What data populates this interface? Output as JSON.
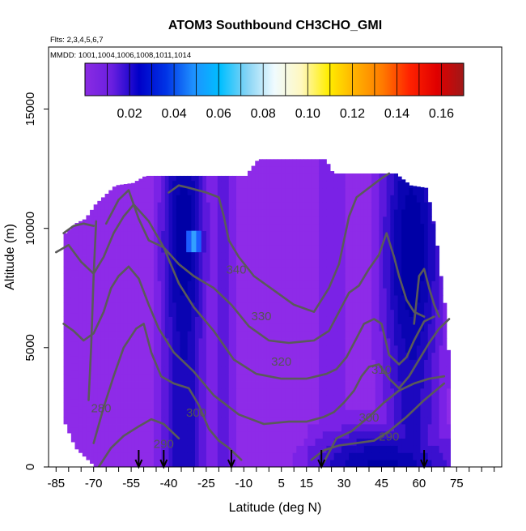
{
  "chart_data": {
    "type": "heatmap",
    "title": "ATOM3 Southbound CH3CHO_GMI",
    "subtitle_flights": "Flts: 2,3,4,5,6,7",
    "subtitle_dates": "MMDD: 1001,1004,1006,1008,1011,1014",
    "xlabel": "Latitude (deg N)",
    "ylabel": "Altitude (m)",
    "xlim": [
      -88,
      93
    ],
    "ylim": [
      0,
      17600
    ],
    "x_ticks": [
      -85,
      -70,
      -55,
      -40,
      -25,
      -10,
      5,
      15,
      30,
      45,
      60,
      75
    ],
    "x_tick_labels": [
      "-85",
      "-70",
      "-55",
      "-40",
      "-25",
      "-10",
      "5",
      "15",
      "30",
      "45",
      "60",
      "75"
    ],
    "y_ticks": [
      0,
      5000,
      10000,
      15000
    ],
    "y_tick_labels": [
      "0",
      "5000",
      "10000",
      "15000"
    ],
    "colorbar": {
      "ticks": [
        0.02,
        0.04,
        0.06,
        0.08,
        0.1,
        0.12,
        0.14,
        0.16
      ],
      "tick_labels": [
        "0.02",
        "0.04",
        "0.06",
        "0.08",
        "0.10",
        "0.12",
        "0.14",
        "0.16"
      ],
      "range": [
        0.0,
        0.17
      ],
      "colors": [
        "#8a2be2",
        "#6a1fe0",
        "#0000c8",
        "#0033e6",
        "#1e90ff",
        "#00bfff",
        "#87d4f5",
        "#f0fbff",
        "#fff8c0",
        "#ffee00",
        "#ffb000",
        "#ff7a00",
        "#ff2200",
        "#e00000",
        "#a01818"
      ]
    },
    "contours": [
      {
        "label": "290",
        "points": [
          [
            -68,
            0
          ],
          [
            -63,
            800
          ],
          [
            -58,
            1300
          ],
          [
            -52,
            1700
          ],
          [
            -47,
            2000
          ],
          [
            -42,
            1800
          ],
          [
            -36,
            1200
          ]
        ]
      },
      {
        "label": "290",
        "points": [
          [
            17,
            300
          ],
          [
            22,
            700
          ],
          [
            28,
            900
          ],
          [
            35,
            1000
          ],
          [
            42,
            1100
          ],
          [
            48,
            1500
          ],
          [
            55,
            2100
          ],
          [
            62,
            2800
          ],
          [
            70,
            3500
          ]
        ]
      },
      {
        "label": "300",
        "points": [
          [
            -70,
            1000
          ],
          [
            -66,
            2500
          ],
          [
            -62,
            3800
          ],
          [
            -58,
            5000
          ],
          [
            -53,
            5800
          ],
          [
            -50,
            6000
          ],
          [
            -47,
            4800
          ],
          [
            -43,
            3800
          ],
          [
            -38,
            3500
          ],
          [
            -32,
            3300
          ],
          [
            -28,
            2600
          ],
          [
            -24,
            1600
          ],
          [
            -20,
            1100
          ],
          [
            -16,
            800
          ],
          [
            -11,
            300
          ]
        ]
      },
      {
        "label": "300",
        "points": [
          [
            22,
            200
          ],
          [
            27,
            1200
          ],
          [
            33,
            1500
          ],
          [
            40,
            2100
          ],
          [
            46,
            2700
          ],
          [
            52,
            3200
          ],
          [
            58,
            3500
          ],
          [
            64,
            3700
          ],
          [
            70,
            3800
          ]
        ]
      },
      {
        "label": "310",
        "points": [
          [
            -82,
            6000
          ],
          [
            -78,
            5700
          ],
          [
            -74,
            5300
          ],
          [
            -70,
            5600
          ],
          [
            -66,
            6500
          ],
          [
            -63,
            7500
          ],
          [
            -60,
            8000
          ],
          [
            -56,
            8400
          ],
          [
            -52,
            7900
          ],
          [
            -48,
            6800
          ],
          [
            -44,
            5800
          ],
          [
            -38,
            4800
          ],
          [
            -30,
            4000
          ],
          [
            -22,
            3000
          ],
          [
            -12,
            2200
          ],
          [
            -2,
            1800
          ],
          [
            8,
            1900
          ],
          [
            15,
            1900
          ],
          [
            22,
            2100
          ],
          [
            26,
            2300
          ],
          [
            30,
            2700
          ],
          [
            34,
            3200
          ],
          [
            37,
            3800
          ],
          [
            40,
            4200
          ],
          [
            44,
            4300
          ],
          [
            48,
            3700
          ],
          [
            52,
            3300
          ],
          [
            56,
            3800
          ],
          [
            60,
            4500
          ],
          [
            64,
            5200
          ],
          [
            68,
            5800
          ],
          [
            72,
            6200
          ]
        ]
      },
      {
        "label": "320",
        "points": [
          [
            -85,
            9000
          ],
          [
            -80,
            9300
          ],
          [
            -75,
            8600
          ],
          [
            -70,
            8100
          ],
          [
            -66,
            8800
          ],
          [
            -62,
            9800
          ],
          [
            -58,
            10500
          ],
          [
            -54,
            11000
          ],
          [
            -48,
            10300
          ],
          [
            -42,
            9200
          ],
          [
            -36,
            7700
          ],
          [
            -30,
            6700
          ],
          [
            -22,
            5700
          ],
          [
            -14,
            4500
          ],
          [
            -5,
            3900
          ],
          [
            5,
            3700
          ],
          [
            15,
            3700
          ],
          [
            23,
            3900
          ],
          [
            27,
            4100
          ],
          [
            31,
            4600
          ],
          [
            35,
            5400
          ],
          [
            38,
            6000
          ],
          [
            42,
            6200
          ],
          [
            45,
            6000
          ],
          [
            48,
            4700
          ],
          [
            52,
            4300
          ],
          [
            55,
            4600
          ],
          [
            58,
            5300
          ],
          [
            62,
            6100
          ],
          [
            66,
            6300
          ]
        ]
      },
      {
        "label": "330",
        "points": [
          [
            -65,
            10200
          ],
          [
            -60,
            11200
          ],
          [
            -56,
            11600
          ],
          [
            -52,
            10400
          ],
          [
            -48,
            9500
          ],
          [
            -42,
            9200
          ],
          [
            -36,
            8500
          ],
          [
            -30,
            8000
          ],
          [
            -22,
            7500
          ],
          [
            -15,
            6800
          ],
          [
            -8,
            5900
          ],
          [
            0,
            5300
          ],
          [
            8,
            5200
          ],
          [
            18,
            5300
          ],
          [
            24,
            5700
          ],
          [
            28,
            6500
          ],
          [
            32,
            7300
          ],
          [
            36,
            7600
          ],
          [
            40,
            8300
          ],
          [
            44,
            8900
          ],
          [
            47,
            9800
          ],
          [
            50,
            8800
          ],
          [
            52,
            8000
          ],
          [
            55,
            7000
          ],
          [
            58,
            6500
          ],
          [
            62,
            6300
          ]
        ]
      },
      {
        "label": "340",
        "points": [
          [
            -40,
            11500
          ],
          [
            -36,
            11800
          ],
          [
            -32,
            11700
          ],
          [
            -25,
            11500
          ],
          [
            -20,
            11300
          ],
          [
            -18,
            10500
          ],
          [
            -16,
            9500
          ],
          [
            -12,
            8800
          ],
          [
            -6,
            8000
          ],
          [
            2,
            7400
          ],
          [
            10,
            6800
          ],
          [
            18,
            6500
          ],
          [
            24,
            7500
          ],
          [
            28,
            8500
          ],
          [
            30,
            9500
          ],
          [
            32,
            10500
          ],
          [
            35,
            11300
          ],
          [
            40,
            11700
          ],
          [
            45,
            12100
          ],
          [
            48,
            12300
          ]
        ]
      },
      {
        "label": "",
        "points": [
          [
            -82,
            9800
          ],
          [
            -78,
            10100
          ],
          [
            -74,
            10200
          ],
          [
            -70,
            10100
          ]
        ]
      },
      {
        "label": "",
        "points": [
          [
            -72,
            2800
          ],
          [
            -71,
            5000
          ],
          [
            -70,
            8000
          ],
          [
            -69,
            10300
          ]
        ]
      },
      {
        "label": "",
        "points": [
          [
            58,
            6000
          ],
          [
            60,
            8000
          ],
          [
            62,
            8300
          ],
          [
            64,
            7500
          ],
          [
            66,
            6800
          ],
          [
            68,
            6300
          ]
        ]
      }
    ],
    "contour_labels": [
      {
        "text": "340",
        "x": -13,
        "y": 8100
      },
      {
        "text": "330",
        "x": -3,
        "y": 6150
      },
      {
        "text": "320",
        "x": 5,
        "y": 4250
      },
      {
        "text": "310",
        "x": 45,
        "y": 3900
      },
      {
        "text": "300",
        "x": -29,
        "y": 2100
      },
      {
        "text": "300",
        "x": 40,
        "y": 1900
      },
      {
        "text": "290",
        "x": -42,
        "y": 800
      },
      {
        "text": "290",
        "x": 48,
        "y": 1100
      },
      {
        "text": "280",
        "x": -67,
        "y": 2300
      }
    ],
    "flight_arrows_x": [
      -52,
      -42,
      -15,
      21,
      62
    ]
  }
}
